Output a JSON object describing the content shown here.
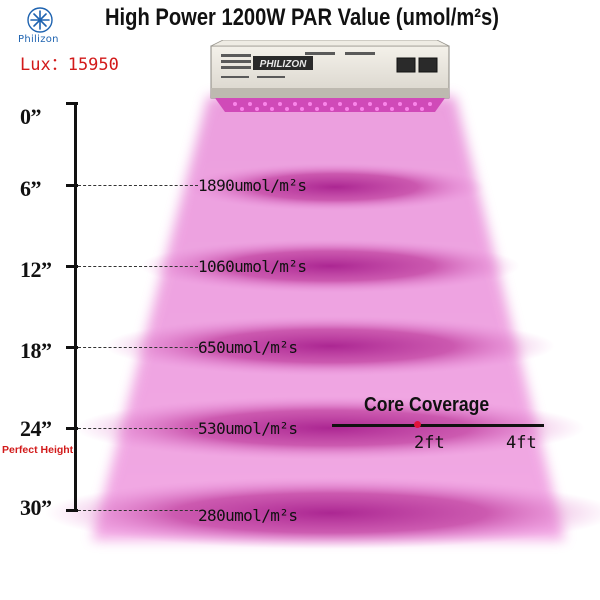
{
  "brand": {
    "name": "Philizon",
    "lux": "Lux：15950",
    "logo_icon": "snowflake-logo-icon"
  },
  "title": "High Power 1200W PAR Value (umol/m²s)",
  "ruler": {
    "depths": [
      "0”",
      "6”",
      "12”",
      "18”",
      "24”",
      "30”"
    ],
    "perfect_height_label": "Perfect Height"
  },
  "par_values": [
    "1890umol/m²s",
    "1060umol/m²s",
    "650umol/m²s",
    "530umol/m²s",
    "280umol/m²s"
  ],
  "coverage": {
    "title": "Core Coverage",
    "ticks": [
      "2ft",
      "4ft"
    ]
  },
  "lamp": {
    "label": "PHILIZON"
  },
  "colors": {
    "light": "#e985d9",
    "light_band": "#b23a9e",
    "lux_red": "#d21a1a",
    "marker_red": "#e0123b"
  }
}
